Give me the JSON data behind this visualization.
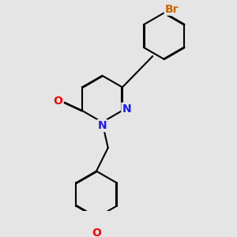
{
  "bg_color": "#e5e5e5",
  "bond_color": "#000000",
  "bond_width": 1.5,
  "dbo": 0.018,
  "atom_colors": {
    "N": "#1a1aff",
    "O": "#ff0000",
    "Br": "#cc6600"
  },
  "font_size": 10,
  "font_size_br": 10,
  "font_size_ch3": 8.5
}
